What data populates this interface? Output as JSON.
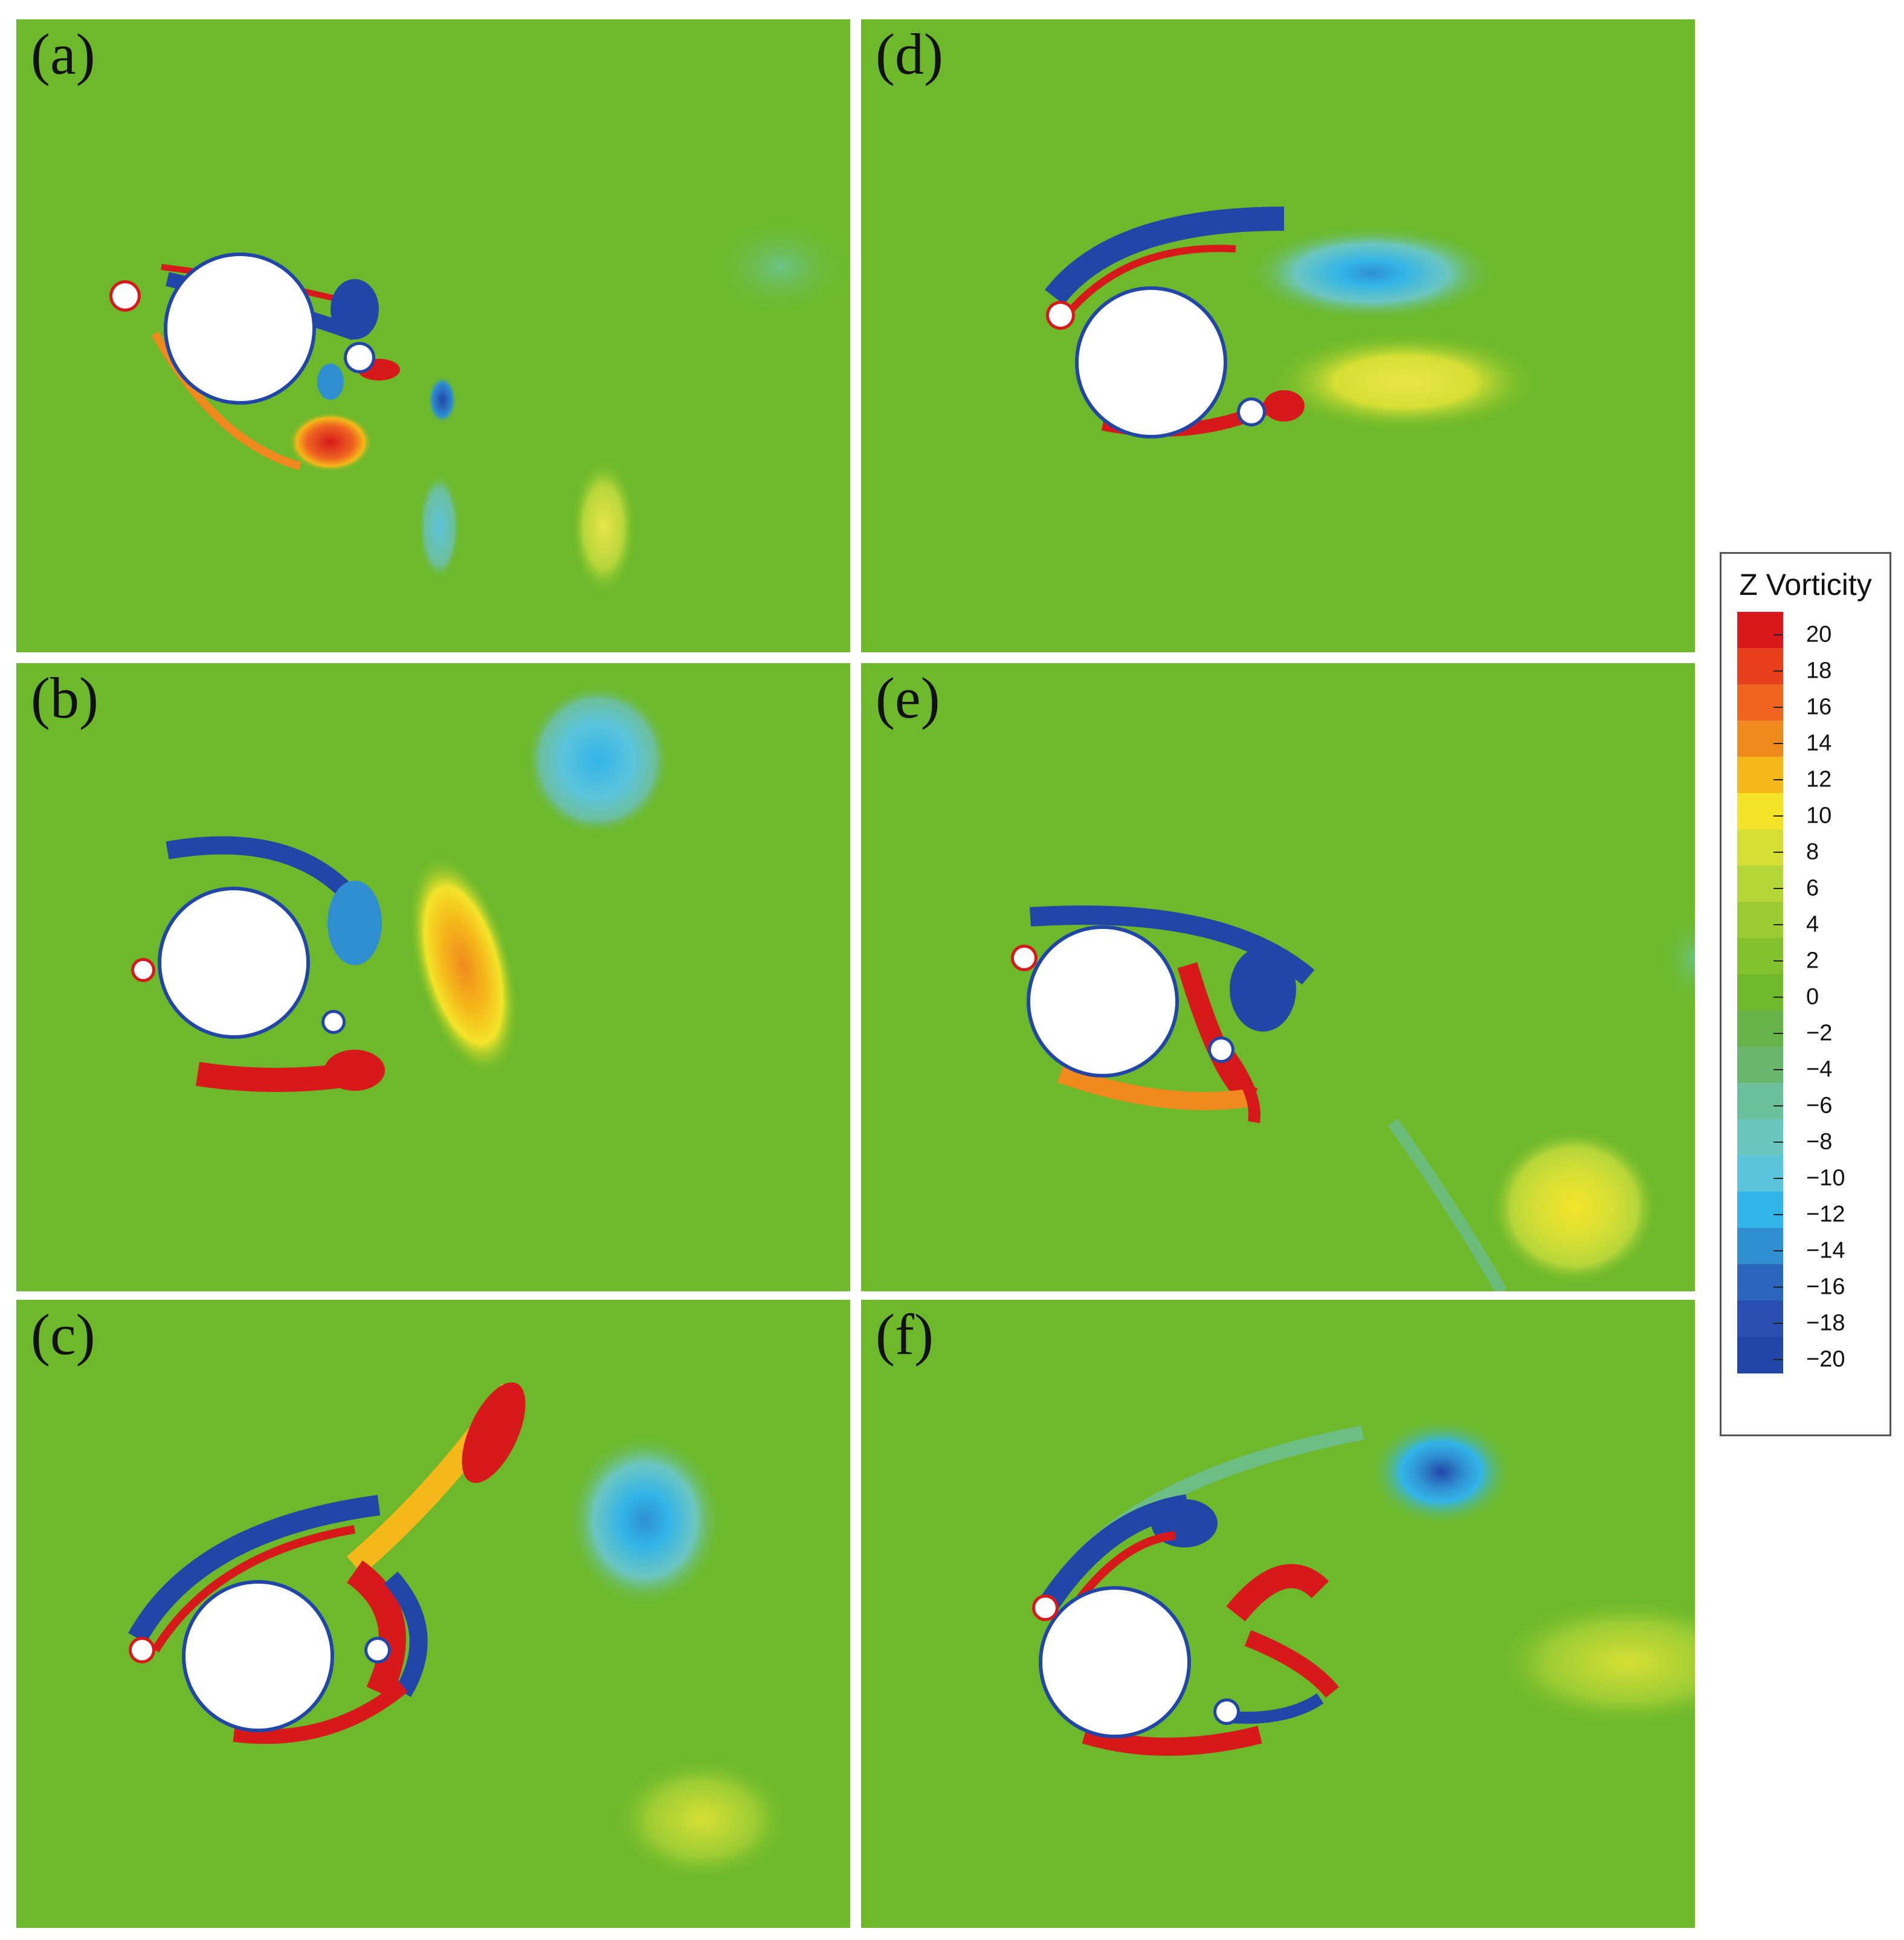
{
  "figure": {
    "panels": [
      {
        "label": "(a)"
      },
      {
        "label": "(b)"
      },
      {
        "label": "(c)"
      },
      {
        "label": "(d)"
      },
      {
        "label": "(e)"
      },
      {
        "label": "(f)"
      }
    ],
    "legend": {
      "title": "Z Vorticity",
      "ticks": [
        "20",
        "18",
        "16",
        "14",
        "12",
        "10",
        "8",
        "6",
        "4",
        "2",
        "0",
        "−2",
        "−4",
        "−6",
        "−8",
        "−10",
        "−12",
        "−14",
        "−16",
        "−18",
        "−20"
      ],
      "colors": [
        "#d7191c",
        "#e8401c",
        "#ee6420",
        "#f08a1e",
        "#f5b81a",
        "#f3e42a",
        "#d6df35",
        "#b6d63a",
        "#9ccc34",
        "#83c22e",
        "#6fb82b",
        "#67b24a",
        "#6ab66e",
        "#6cbf9b",
        "#6cc6c0",
        "#5cc4db",
        "#32b4e8",
        "#2f8fd0",
        "#2d67bd",
        "#2a4fb0",
        "#2146a8"
      ],
      "colors_note_background": "#6db92b"
    }
  }
}
